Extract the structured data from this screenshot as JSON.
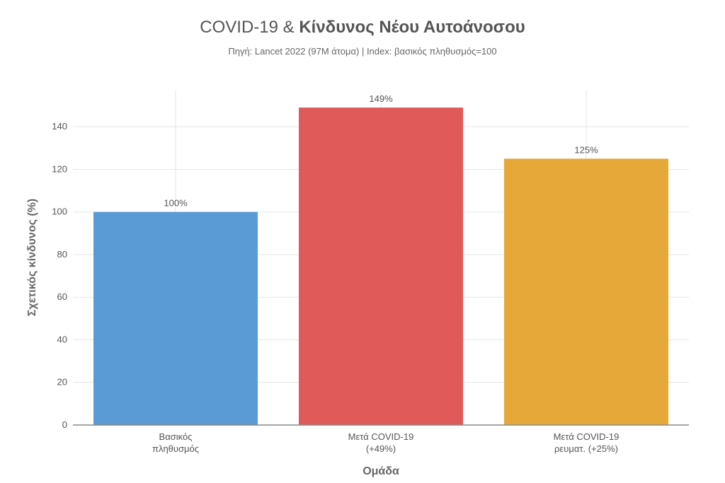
{
  "chart_data": {
    "type": "bar",
    "title_prefix": "COVID-19 & ",
    "title_main": "Κίνδυνος Νέου Αυτοάνοσου",
    "subtitle": "Πηγή: Lancet 2022 (97M άτομα) | Index: βασικός πληθυσμός=100",
    "xlabel": "Ομάδα",
    "ylabel": "Σχετικός κίνδυνος (%)",
    "ylim": [
      0,
      157
    ],
    "yticks": [
      0,
      20,
      40,
      60,
      80,
      100,
      120,
      140
    ],
    "grid": true,
    "categories": [
      [
        "Βασικός",
        "πληθυσμός"
      ],
      [
        "Μετά COVID-19",
        "(+49%)"
      ],
      [
        "Μετά COVID-19",
        "ρευματ. (+25%)"
      ]
    ],
    "values": [
      100,
      149,
      125
    ],
    "data_labels": [
      "100%",
      "149%",
      "125%"
    ],
    "colors": [
      "#5b9bd5",
      "#e05a5a",
      "#e6a838"
    ]
  }
}
